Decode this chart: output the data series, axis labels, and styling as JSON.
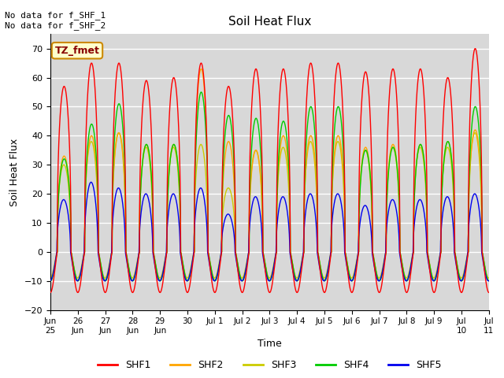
{
  "title": "Soil Heat Flux",
  "ylabel": "Soil Heat Flux",
  "xlabel": "Time",
  "ylim": [
    -20,
    75
  ],
  "yticks": [
    -20,
    -10,
    0,
    10,
    20,
    30,
    40,
    50,
    60,
    70
  ],
  "background_color": "#ffffff",
  "plot_bg_color": "#d8d8d8",
  "grid_color": "#ffffff",
  "annotation_text": "No data for f_SHF_1\nNo data for f_SHF_2",
  "legend_box_text": "TZ_fmet",
  "legend_box_color": "#ffffcc",
  "legend_box_border": "#cc8800",
  "line_colors": {
    "SHF1": "#ff0000",
    "SHF2": "#ffa500",
    "SHF3": "#cccc00",
    "SHF4": "#00cc00",
    "SHF5": "#0000ee"
  },
  "n_points": 8000,
  "total_days": 16
}
